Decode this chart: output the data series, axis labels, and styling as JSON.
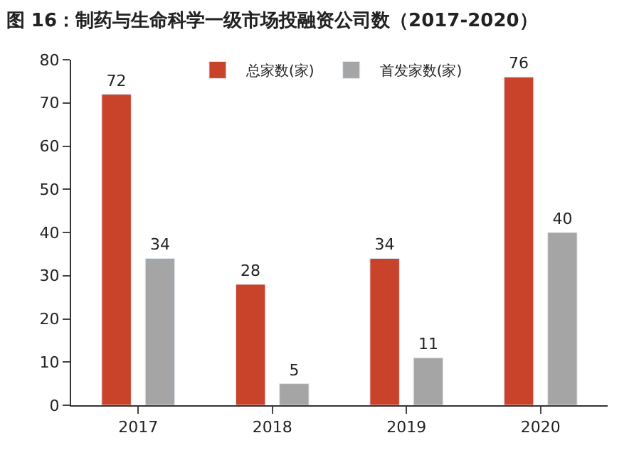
{
  "chart_data": {
    "type": "bar",
    "title": "图 16：制药与生命科学一级市场投融资公司数（2017-2020）",
    "categories": [
      "2017",
      "2018",
      "2019",
      "2020"
    ],
    "series": [
      {
        "name": "总家数(家)",
        "color": "#c9422a",
        "values": [
          72,
          28,
          34,
          76
        ]
      },
      {
        "name": "首发家数(家)",
        "color": "#a5a5a5",
        "values": [
          34,
          5,
          11,
          40
        ]
      }
    ],
    "ylim": [
      0,
      80
    ],
    "yticks": [
      0,
      10,
      20,
      30,
      40,
      50,
      60,
      70,
      80
    ],
    "legend": "top",
    "data_labels": true
  }
}
